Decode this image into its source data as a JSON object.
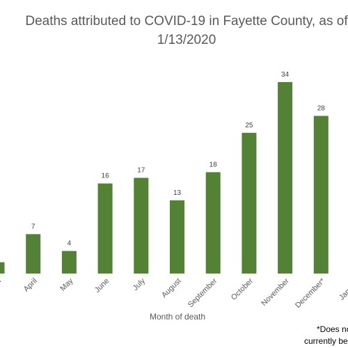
{
  "chart_data": {
    "type": "bar",
    "title_line1": "Deaths attributed to COVID-19 in Fayette County, as of",
    "title_line2": "1/13/2020",
    "categories": [
      "March",
      "April",
      "May",
      "June",
      "July",
      "August",
      "September",
      "October",
      "November",
      "December*",
      "January"
    ],
    "values": [
      2,
      7,
      4,
      16,
      17,
      13,
      18,
      25,
      34,
      28,
      null
    ],
    "xlabel": "Month of death",
    "ylabel": "",
    "ylim": [
      0,
      40
    ],
    "grid": false,
    "bar_color": "#548235",
    "footnote_line1": "*Does no",
    "footnote_line2": "currently be"
  }
}
